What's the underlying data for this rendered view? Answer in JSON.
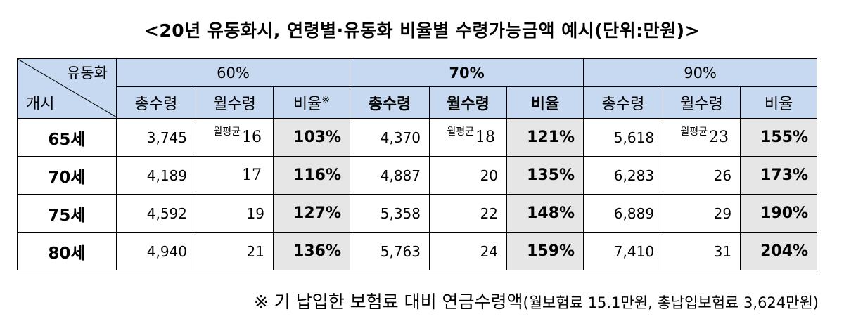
{
  "title": "<20년 유동화시, 연령별·유동화 비율별 수령가능금액 예시(단위:만원)>",
  "corner": {
    "top": "유동화",
    "bottom": "개시"
  },
  "groups": [
    {
      "label": "60%",
      "cols": [
        "총수령",
        "월수령",
        "비율"
      ],
      "ratio_mark": "※"
    },
    {
      "label": "70%",
      "cols": [
        "총수령",
        "월수령",
        "비율"
      ]
    },
    {
      "label": "90%",
      "cols": [
        "총수령",
        "월수령",
        "비율"
      ]
    }
  ],
  "monthly_note": "월평균",
  "rows": [
    {
      "age": "65세",
      "c": [
        "3,745",
        "16",
        "103%",
        "4,370",
        "18",
        "121%",
        "5,618",
        "23",
        "155%"
      ]
    },
    {
      "age": "70세",
      "c": [
        "4,189",
        "17",
        "116%",
        "4,887",
        "20",
        "135%",
        "6,283",
        "26",
        "173%"
      ]
    },
    {
      "age": "75세",
      "c": [
        "4,592",
        "19",
        "127%",
        "5,358",
        "22",
        "148%",
        "6,889",
        "29",
        "190%"
      ]
    },
    {
      "age": "80세",
      "c": [
        "4,940",
        "21",
        "136%",
        "5,763",
        "24",
        "159%",
        "7,410",
        "31",
        "204%"
      ]
    }
  ],
  "footnote": {
    "main": "※ 기 납입한 보험료 대비 연금수령액",
    "detail": "(월보험료 15.1만원, 총납입보험료 3,624만원)"
  }
}
